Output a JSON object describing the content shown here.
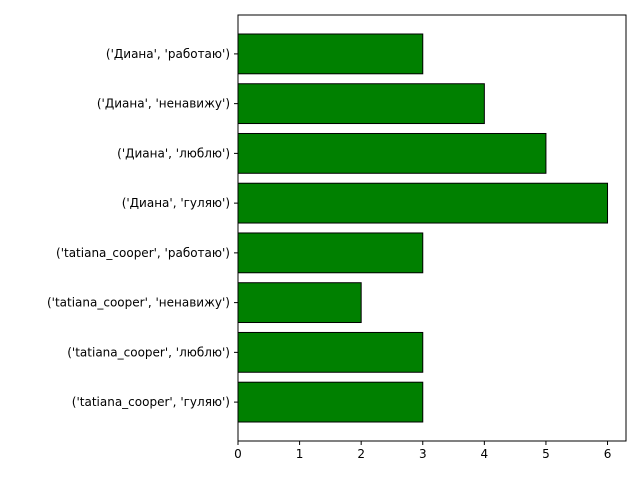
{
  "chart_data": {
    "type": "bar",
    "orientation": "horizontal",
    "title": "",
    "xlabel": "",
    "ylabel": "",
    "categories": [
      "('Диана', 'работаю')",
      "('Диана', 'ненавижу')",
      "('Диана', 'люблю')",
      "('Диана', 'гуляю')",
      "('tatiana_cooper', 'работаю')",
      "('tatiana_cooper', 'ненавижу')",
      "('tatiana_cooper', 'люблю')",
      "('tatiana_cooper', 'гуляю')"
    ],
    "values": [
      3,
      4,
      5,
      6,
      3,
      2,
      3,
      3
    ],
    "xlim": [
      0,
      6.3
    ],
    "xticks": [
      "0",
      "1",
      "2",
      "3",
      "4",
      "5",
      "6"
    ],
    "grid": false,
    "legend": "none",
    "colors": {
      "bar_fill": "#008000",
      "bar_edge": "#000000",
      "axis": "#000000",
      "background": "#ffffff"
    }
  }
}
